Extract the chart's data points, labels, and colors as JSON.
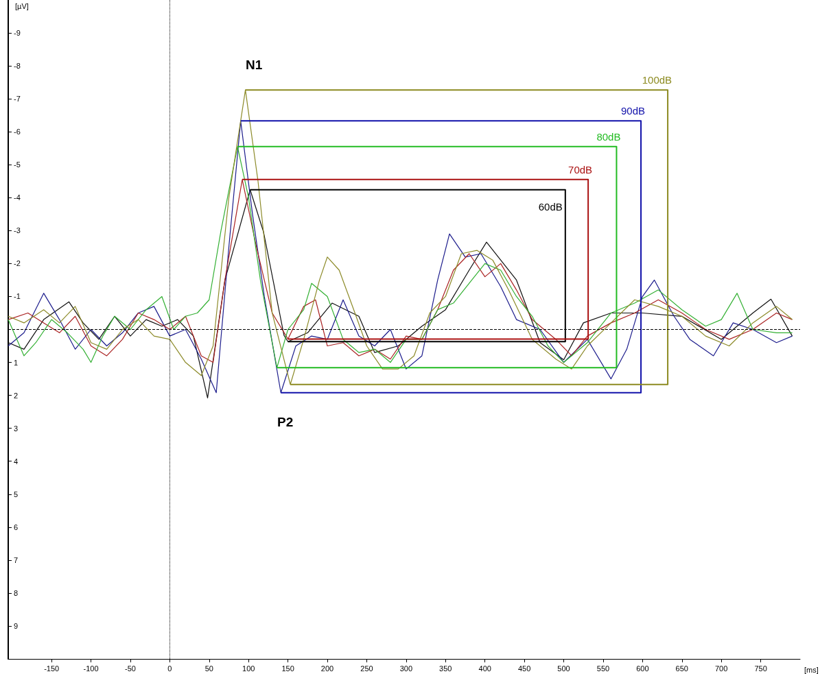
{
  "chart_data": {
    "type": "line",
    "xlabel": "[ms]",
    "ylabel": "[µV]",
    "xlim": [
      -205,
      800
    ],
    "xticks": [
      -150,
      -100,
      -50,
      0,
      50,
      100,
      150,
      200,
      250,
      300,
      350,
      400,
      450,
      500,
      550,
      600,
      650,
      700,
      750
    ],
    "ylim": [
      10,
      -10
    ],
    "yticks": [
      -9,
      -8,
      -7,
      -6,
      -5,
      -4,
      -3,
      -2,
      -1,
      1,
      2,
      3,
      4,
      5,
      6,
      7,
      8,
      9
    ],
    "grid": false,
    "legend": false,
    "marker": "none",
    "line_style": "solid",
    "series": [
      {
        "color": "#101010",
        "x": [
          -205,
          -185,
          -160,
          -128,
          -110,
          -90,
          -70,
          -50,
          -30,
          -10,
          10,
          30,
          48,
          70,
          102,
          119,
          145,
          150,
          175,
          206,
          240,
          260,
          290,
          320,
          350,
          380,
          402,
          440,
          470,
          500,
          525,
          560,
          600,
          650,
          700,
          740,
          763,
          790
        ],
        "values": [
          0.4,
          0.6,
          -0.3,
          -0.84,
          -0.2,
          0.3,
          -0.4,
          0.2,
          -0.3,
          -0.1,
          -0.3,
          0.2,
          2.08,
          -1.5,
          -4.24,
          -2.96,
          0.18,
          0.37,
          0.1,
          -0.8,
          -0.4,
          0.7,
          0.5,
          -0.1,
          -0.6,
          -1.8,
          -2.65,
          -1.5,
          0.4,
          0.92,
          -0.2,
          -0.5,
          -0.5,
          -0.4,
          0.3,
          -0.5,
          -0.92,
          0.2
        ]
      },
      {
        "color": "#1c1c8c",
        "x": [
          -205,
          -185,
          -160,
          -140,
          -120,
          -100,
          -80,
          -60,
          -40,
          -20,
          0,
          20,
          40,
          59,
          75,
          90,
          105,
          120,
          141,
          160,
          180,
          200,
          220,
          240,
          260,
          280,
          300,
          320,
          340,
          355,
          375,
          395,
          420,
          440,
          470,
          500,
          530,
          560,
          580,
          600,
          615,
          640,
          660,
          690,
          715,
          740,
          770,
          790
        ],
        "values": [
          0.5,
          0.1,
          -1.1,
          -0.3,
          0.6,
          0.0,
          0.5,
          0.1,
          -0.5,
          -0.7,
          0.2,
          0.0,
          0.9,
          1.92,
          -2.5,
          -6.33,
          -3.5,
          -1.0,
          1.92,
          0.5,
          0.2,
          0.3,
          -0.9,
          0.2,
          0.5,
          0.0,
          1.2,
          0.8,
          -1.5,
          -2.9,
          -2.2,
          -2.3,
          -1.3,
          -0.3,
          0.0,
          1.0,
          0.3,
          1.5,
          0.6,
          -1.0,
          -1.5,
          -0.4,
          0.3,
          0.8,
          -0.2,
          0.0,
          0.4,
          0.2
        ]
      },
      {
        "color": "#aa2222",
        "x": [
          -205,
          -180,
          -160,
          -140,
          -120,
          -100,
          -80,
          -60,
          -40,
          -20,
          0,
          20,
          40,
          55,
          70,
          92,
          110,
          130,
          150,
          170,
          185,
          200,
          220,
          240,
          260,
          280,
          300,
          320,
          340,
          360,
          380,
          400,
          420,
          440,
          460,
          490,
          510,
          530,
          560,
          590,
          620,
          650,
          680,
          710,
          740,
          770,
          790
        ],
        "values": [
          -0.3,
          -0.5,
          -0.2,
          0.1,
          -0.4,
          0.5,
          0.8,
          0.3,
          -0.5,
          -0.3,
          0.0,
          -0.4,
          0.8,
          1.0,
          -1.5,
          -4.55,
          -2.5,
          -0.5,
          0.29,
          -0.7,
          -0.9,
          0.5,
          0.4,
          0.8,
          0.6,
          0.9,
          0.2,
          0.3,
          -0.6,
          -1.8,
          -2.3,
          -1.6,
          -2.0,
          -1.2,
          -0.3,
          0.3,
          0.8,
          0.2,
          -0.2,
          -0.5,
          -0.9,
          -0.5,
          0.0,
          0.3,
          0.0,
          -0.5,
          -0.3
        ]
      },
      {
        "color": "#33b033",
        "x": [
          -205,
          -185,
          -170,
          -150,
          -130,
          -110,
          -100,
          -85,
          -70,
          -50,
          -30,
          -10,
          5,
          20,
          35,
          50,
          65,
          86,
          100,
          115,
          136,
          150,
          170,
          180,
          200,
          220,
          240,
          260,
          280,
          300,
          320,
          340,
          360,
          380,
          400,
          420,
          440,
          460,
          480,
          500,
          530,
          560,
          590,
          620,
          650,
          680,
          700,
          720,
          740,
          770,
          790
        ],
        "values": [
          -0.3,
          0.8,
          0.4,
          -0.3,
          0.1,
          0.6,
          1.0,
          0.2,
          -0.4,
          0.0,
          -0.6,
          -1.0,
          0.0,
          -0.4,
          -0.5,
          -0.9,
          -3.0,
          -5.55,
          -4.0,
          -1.5,
          1.16,
          0.0,
          -0.6,
          -1.4,
          -1.0,
          0.3,
          0.7,
          0.6,
          1.0,
          0.3,
          0.3,
          -0.6,
          -0.8,
          -1.4,
          -2.0,
          -1.8,
          -1.0,
          -0.4,
          0.5,
          1.0,
          0.4,
          -0.5,
          -0.8,
          -1.2,
          -0.6,
          -0.1,
          -0.3,
          -1.1,
          0.0,
          0.1,
          0.1
        ]
      },
      {
        "color": "#8c8a28",
        "x": [
          -205,
          -185,
          -160,
          -140,
          -120,
          -100,
          -80,
          -60,
          -40,
          -20,
          0,
          20,
          40,
          55,
          75,
          96,
          112,
          130,
          153,
          170,
          190,
          200,
          215,
          235,
          250,
          270,
          290,
          310,
          330,
          350,
          370,
          390,
          410,
          430,
          460,
          490,
          510,
          530,
          560,
          590,
          620,
          650,
          680,
          710,
          740,
          770,
          790
        ],
        "values": [
          -0.4,
          -0.2,
          -0.6,
          -0.2,
          -0.7,
          0.4,
          0.6,
          0.0,
          -0.3,
          0.2,
          0.3,
          1.0,
          1.4,
          0.5,
          -4.0,
          -7.27,
          -4.5,
          -0.5,
          1.67,
          0.3,
          -1.5,
          -2.2,
          -1.8,
          -0.5,
          0.5,
          1.2,
          1.2,
          0.8,
          -0.5,
          -1.0,
          -2.3,
          -2.4,
          -2.1,
          -1.2,
          0.3,
          0.9,
          1.2,
          0.5,
          -0.2,
          -0.9,
          -0.7,
          -0.4,
          0.2,
          0.5,
          -0.2,
          -0.7,
          -0.3
        ]
      },
      {
        "name": "60dB",
        "color": "#000000",
        "x": [
          102,
          502,
          502,
          150
        ],
        "values": [
          -4.24,
          -4.24,
          0.37,
          0.37
        ]
      },
      {
        "name": "70dB",
        "color": "#aa1111",
        "x": [
          92,
          531,
          531,
          150
        ],
        "values": [
          -4.55,
          -4.55,
          0.29,
          0.29
        ]
      },
      {
        "name": "80dB",
        "color": "#22bb22",
        "x": [
          86,
          567,
          567,
          136
        ],
        "values": [
          -5.55,
          -5.55,
          1.16,
          1.16
        ]
      },
      {
        "name": "90dB",
        "color": "#1111aa",
        "x": [
          90,
          598,
          598,
          141
        ],
        "values": [
          -6.33,
          -6.33,
          1.92,
          1.92
        ]
      },
      {
        "name": "100dB",
        "color": "#8c8a20",
        "x": [
          96,
          632,
          632,
          153
        ],
        "values": [
          -7.27,
          -7.27,
          1.67,
          1.67
        ]
      }
    ],
    "ref_lines": [
      {
        "axis": "x",
        "value": 0,
        "color": "#000000",
        "line_style": "dotted"
      },
      {
        "axis": "y",
        "value": 0,
        "color": "#000000",
        "line_style": "dashed"
      }
    ],
    "annotations": [
      "N1",
      "P2"
    ]
  }
}
